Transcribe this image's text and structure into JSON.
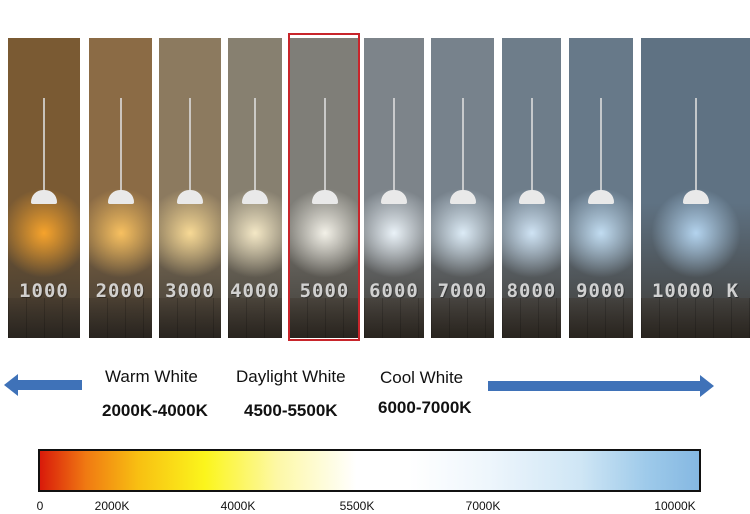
{
  "panels": [
    {
      "temp": "1000",
      "wall": "#7a5a33",
      "glow": "#f6a32c"
    },
    {
      "temp": "2000",
      "wall": "#8b6b45",
      "glow": "#f7c060"
    },
    {
      "temp": "3000",
      "wall": "#8c7a5f",
      "glow": "#f7d995"
    },
    {
      "temp": "4000",
      "wall": "#878070",
      "glow": "#f4e8c6"
    },
    {
      "temp": "5000",
      "wall": "#7f7e78",
      "glow": "#f3f1e8"
    },
    {
      "temp": "6000",
      "wall": "#7d848a",
      "glow": "#eaf2f8"
    },
    {
      "temp": "7000",
      "wall": "#77828c",
      "glow": "#dcebf6"
    },
    {
      "temp": "8000",
      "wall": "#6e7d8a",
      "glow": "#cfe3f4"
    },
    {
      "temp": "9000",
      "wall": "#677989",
      "glow": "#c1dcf1"
    },
    {
      "temp": "10000 K",
      "wall": "#5f7283",
      "glow": "#b3d3ee"
    }
  ],
  "categories": [
    {
      "label": "Warm White",
      "range": "2000K-4000K"
    },
    {
      "label": "Daylight White",
      "range": "4500-5500K"
    },
    {
      "label": "Cool White",
      "range": "6000-7000K"
    }
  ],
  "scale_ticks": [
    "0",
    "2000K",
    "4000K",
    "5500K",
    "7000K",
    "10000K"
  ],
  "colors": {
    "highlight": "#c8252b",
    "arrow": "#3f72b8"
  }
}
